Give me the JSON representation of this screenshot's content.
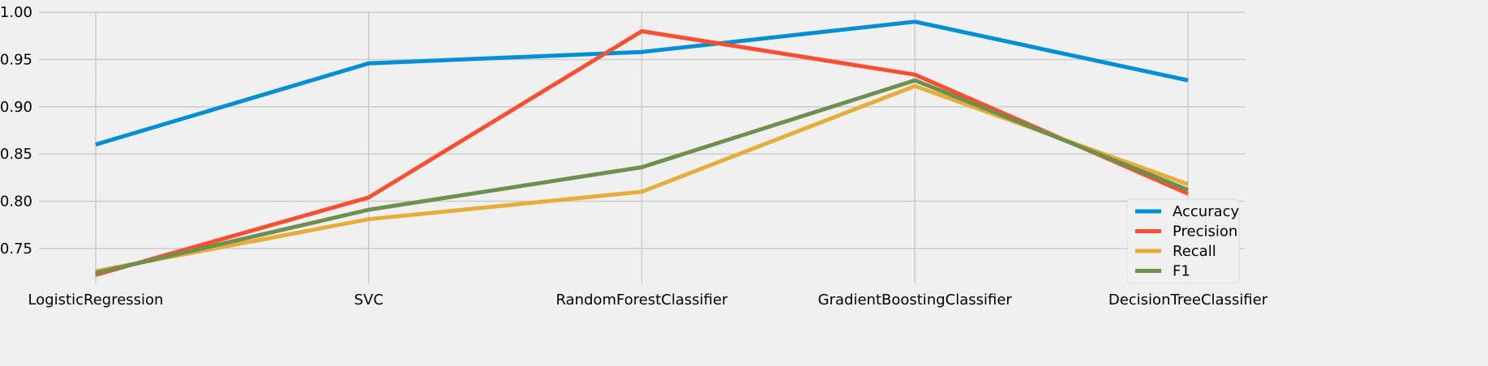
{
  "chart_data": {
    "type": "line",
    "title": "",
    "xlabel": "",
    "ylabel": "",
    "categories": [
      "LogisticRegression",
      "SVC",
      "RandomForestClassifier",
      "GradientBoostingClassifier",
      "DecisionTreeClassifier"
    ],
    "series": [
      {
        "name": "Accuracy",
        "color": "#008fd5",
        "values": [
          0.86,
          0.946,
          0.958,
          0.99,
          0.928
        ]
      },
      {
        "name": "Precision",
        "color": "#fc4f30",
        "values": [
          0.722,
          0.804,
          0.98,
          0.934,
          0.808
        ]
      },
      {
        "name": "Recall",
        "color": "#e5ae38",
        "values": [
          0.726,
          0.781,
          0.81,
          0.922,
          0.818
        ]
      },
      {
        "name": "F1",
        "color": "#6d904f",
        "values": [
          0.724,
          0.791,
          0.836,
          0.928,
          0.812
        ]
      }
    ],
    "ylim": [
      0.713,
      1.001
    ],
    "yticks": [
      "0.75",
      "0.80",
      "0.85",
      "0.90",
      "0.95",
      "1.00"
    ],
    "ytick_values": [
      0.75,
      0.8,
      0.85,
      0.9,
      0.95,
      1.0
    ],
    "grid": true,
    "legend_position": "lower-right",
    "style": "fivethirtyeight"
  }
}
